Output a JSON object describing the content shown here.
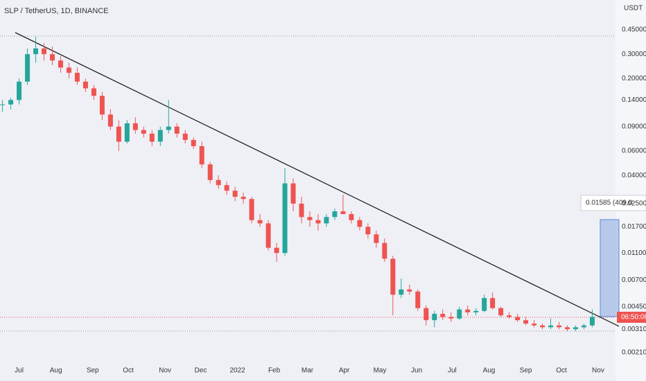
{
  "chart_data": {
    "type": "candlestick",
    "title": "SLP / TetherUS, 1D, BINANCE",
    "y_axis_label": "USDT",
    "log_scale": true,
    "grid": false,
    "up_color": "#26a69a",
    "down_color": "#ef5350",
    "open": [
      0.13,
      0.13,
      0.14,
      0.19,
      0.3,
      0.33,
      0.3,
      0.27,
      0.24,
      0.22,
      0.19,
      0.17,
      0.15,
      0.11,
      0.09,
      0.07,
      0.095,
      0.085,
      0.08,
      0.07,
      0.085,
      0.09,
      0.08,
      0.072,
      0.065,
      0.048,
      0.037,
      0.034,
      0.031,
      0.028,
      0.027,
      0.019,
      0.018,
      0.012,
      0.011,
      0.035,
      0.025,
      0.02,
      0.019,
      0.018,
      0.02,
      0.022,
      0.021,
      0.019,
      0.017,
      0.015,
      0.013,
      0.01,
      0.0055,
      0.006,
      0.0058,
      0.0044,
      0.0036,
      0.004,
      0.0038,
      0.0037,
      0.0043,
      0.0041,
      0.0042,
      0.0052,
      0.0044,
      0.0039,
      0.0038,
      0.0036,
      0.0034,
      0.0033,
      0.0032,
      0.0033,
      0.0032,
      0.0031,
      0.0032,
      0.0033
    ],
    "high": [
      0.14,
      0.145,
      0.2,
      0.33,
      0.4,
      0.36,
      0.34,
      0.29,
      0.26,
      0.24,
      0.2,
      0.18,
      0.16,
      0.12,
      0.1,
      0.1,
      0.105,
      0.09,
      0.085,
      0.09,
      0.14,
      0.095,
      0.085,
      0.075,
      0.07,
      0.05,
      0.04,
      0.036,
      0.033,
      0.03,
      0.028,
      0.021,
      0.019,
      0.013,
      0.045,
      0.038,
      0.028,
      0.022,
      0.021,
      0.021,
      0.023,
      0.029,
      0.022,
      0.02,
      0.018,
      0.016,
      0.014,
      0.0105,
      0.0072,
      0.0065,
      0.006,
      0.0046,
      0.0042,
      0.0043,
      0.0041,
      0.0045,
      0.0046,
      0.0044,
      0.0055,
      0.0057,
      0.0045,
      0.0041,
      0.004,
      0.0038,
      0.0036,
      0.0034,
      0.0037,
      0.0035,
      0.0033,
      0.0033,
      0.0034,
      0.0043
    ],
    "low": [
      0.115,
      0.12,
      0.13,
      0.18,
      0.26,
      0.27,
      0.25,
      0.22,
      0.2,
      0.18,
      0.16,
      0.14,
      0.1,
      0.085,
      0.06,
      0.068,
      0.08,
      0.075,
      0.065,
      0.065,
      0.08,
      0.075,
      0.068,
      0.062,
      0.045,
      0.035,
      0.032,
      0.029,
      0.026,
      0.025,
      0.018,
      0.017,
      0.0115,
      0.0095,
      0.0105,
      0.022,
      0.018,
      0.017,
      0.016,
      0.017,
      0.019,
      0.021,
      0.018,
      0.016,
      0.014,
      0.012,
      0.0095,
      0.0039,
      0.0052,
      0.0055,
      0.0042,
      0.0033,
      0.0032,
      0.0036,
      0.0035,
      0.0036,
      0.0039,
      0.0039,
      0.0041,
      0.0043,
      0.0038,
      0.0037,
      0.0035,
      0.0033,
      0.0032,
      0.0031,
      0.0031,
      0.0031,
      0.003,
      0.003,
      0.0031,
      0.0032
    ],
    "close": [
      0.13,
      0.14,
      0.19,
      0.3,
      0.33,
      0.3,
      0.27,
      0.24,
      0.22,
      0.19,
      0.17,
      0.15,
      0.11,
      0.09,
      0.07,
      0.095,
      0.085,
      0.08,
      0.07,
      0.085,
      0.09,
      0.08,
      0.072,
      0.065,
      0.048,
      0.037,
      0.034,
      0.031,
      0.028,
      0.027,
      0.019,
      0.018,
      0.012,
      0.011,
      0.035,
      0.025,
      0.02,
      0.019,
      0.018,
      0.02,
      0.022,
      0.021,
      0.019,
      0.017,
      0.015,
      0.013,
      0.01,
      0.0055,
      0.006,
      0.0058,
      0.0044,
      0.0036,
      0.004,
      0.0038,
      0.0037,
      0.0043,
      0.0041,
      0.0042,
      0.0052,
      0.0044,
      0.0039,
      0.0038,
      0.0036,
      0.0034,
      0.0033,
      0.0032,
      0.0033,
      0.0032,
      0.0031,
      0.0032,
      0.0033,
      0.0038
    ],
    "xlim": [
      -0.3,
      73.8
    ],
    "xticks": [
      {
        "value": 2,
        "label": "Jul"
      },
      {
        "value": 6.43,
        "label": "Aug"
      },
      {
        "value": 10.86,
        "label": "Sep"
      },
      {
        "value": 15.14,
        "label": "Oct"
      },
      {
        "value": 19.57,
        "label": "Nov"
      },
      {
        "value": 23.86,
        "label": "Dec"
      },
      {
        "value": 28.29,
        "label": "2022"
      },
      {
        "value": 32.71,
        "label": "Feb"
      },
      {
        "value": 36.71,
        "label": "Mar"
      },
      {
        "value": 41.14,
        "label": "Apr"
      },
      {
        "value": 45.43,
        "label": "May"
      },
      {
        "value": 49.86,
        "label": "Jun"
      },
      {
        "value": 54.14,
        "label": "Jul"
      },
      {
        "value": 58.57,
        "label": "Aug"
      },
      {
        "value": 63,
        "label": "Sep"
      },
      {
        "value": 67.29,
        "label": "Oct"
      },
      {
        "value": 71.71,
        "label": "Nov"
      }
    ],
    "ylim": [
      0.00185,
      0.738
    ],
    "yticks": [
      {
        "value": 0.45,
        "label": "0.45000"
      },
      {
        "value": 0.3,
        "label": "0.30000"
      },
      {
        "value": 0.2,
        "label": "0.20000"
      },
      {
        "value": 0.14,
        "label": "0.14000"
      },
      {
        "value": 0.09,
        "label": "0.09000"
      },
      {
        "value": 0.06,
        "label": "0.06000"
      },
      {
        "value": 0.04,
        "label": "0.04000"
      },
      {
        "value": 0.025,
        "label": "0.02500"
      },
      {
        "value": 0.017,
        "label": "0.01700"
      },
      {
        "value": 0.011,
        "label": "0.01100"
      },
      {
        "value": 0.007,
        "label": "0.00700"
      },
      {
        "value": 0.0045,
        "label": "0.00450"
      },
      {
        "value": 0.0031,
        "label": "0.00310"
      },
      {
        "value": 0.0021,
        "label": "0.00210"
      }
    ],
    "price_label": "06:50:08",
    "measure_label": "0.01585 (409.0"
  }
}
